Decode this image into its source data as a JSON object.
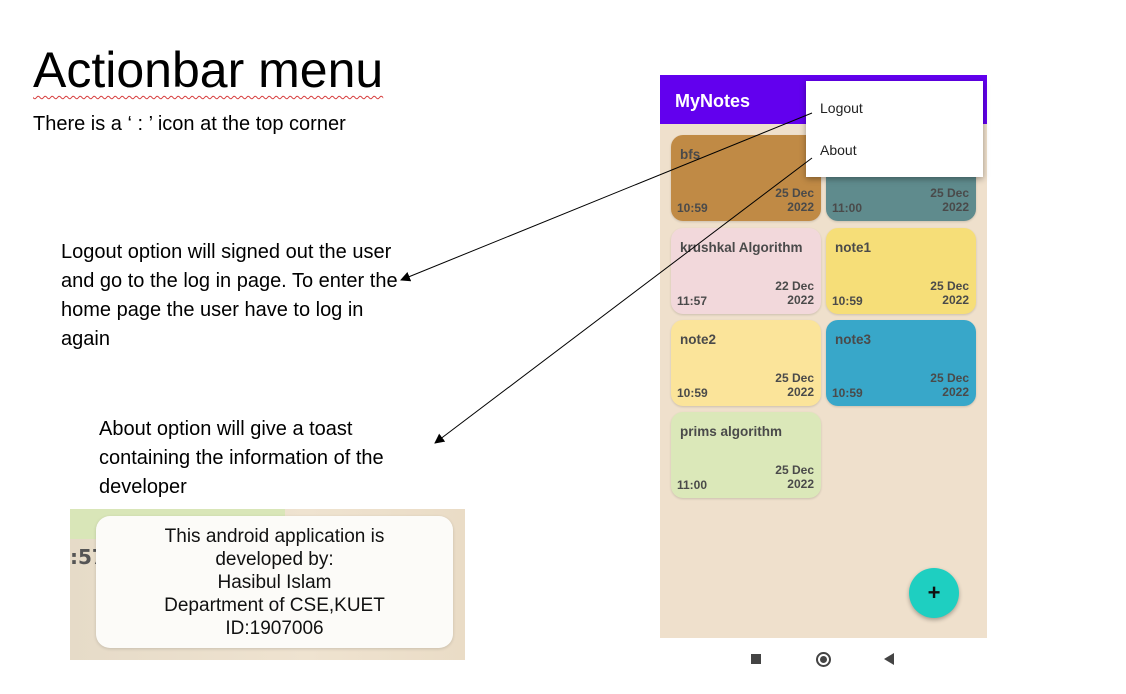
{
  "slide": {
    "title": "Actionbar menu",
    "subtitle": "There is a ‘ : ’ icon at the top corner",
    "logout_description": "Logout option will signed out the user and go to the log in page. To enter the home page the user have to log in again",
    "about_description": "About option will give a toast containing the information of the developer"
  },
  "toast": {
    "partial_time": ":57",
    "lines": [
      "This android application is",
      "developed by:",
      "Hasibul Islam",
      "Department of CSE,KUET",
      "ID:1907006"
    ]
  },
  "phone": {
    "app_title": "MyNotes",
    "appbar_color": "#6200ee",
    "menu": {
      "logout": "Logout",
      "about": "About"
    },
    "fab_label": "+",
    "notes": [
      {
        "title": "bfs",
        "date_day": "25 Dec",
        "date_year": "2022",
        "time": "10:59",
        "color": "#c08a45"
      },
      {
        "title": "",
        "date_day": "25 Dec",
        "date_year": "2022",
        "time": "11:00",
        "color": "#5f8b8d"
      },
      {
        "title": "krushkal Algorithm",
        "date_day": "22 Dec",
        "date_year": "2022",
        "time": "11:57",
        "color": "#f2d8db"
      },
      {
        "title": "note1",
        "date_day": "25 Dec",
        "date_year": "2022",
        "time": "10:59",
        "color": "#f6de78"
      },
      {
        "title": "note2",
        "date_day": "25 Dec",
        "date_year": "2022",
        "time": "10:59",
        "color": "#fbe49a"
      },
      {
        "title": "note3",
        "date_day": "25 Dec",
        "date_year": "2022",
        "time": "10:59",
        "color": "#38a7c9"
      },
      {
        "title": "prims algorithm",
        "date_day": "25 Dec",
        "date_year": "2022",
        "time": "11:00",
        "color": "#dbe8b9"
      }
    ]
  }
}
